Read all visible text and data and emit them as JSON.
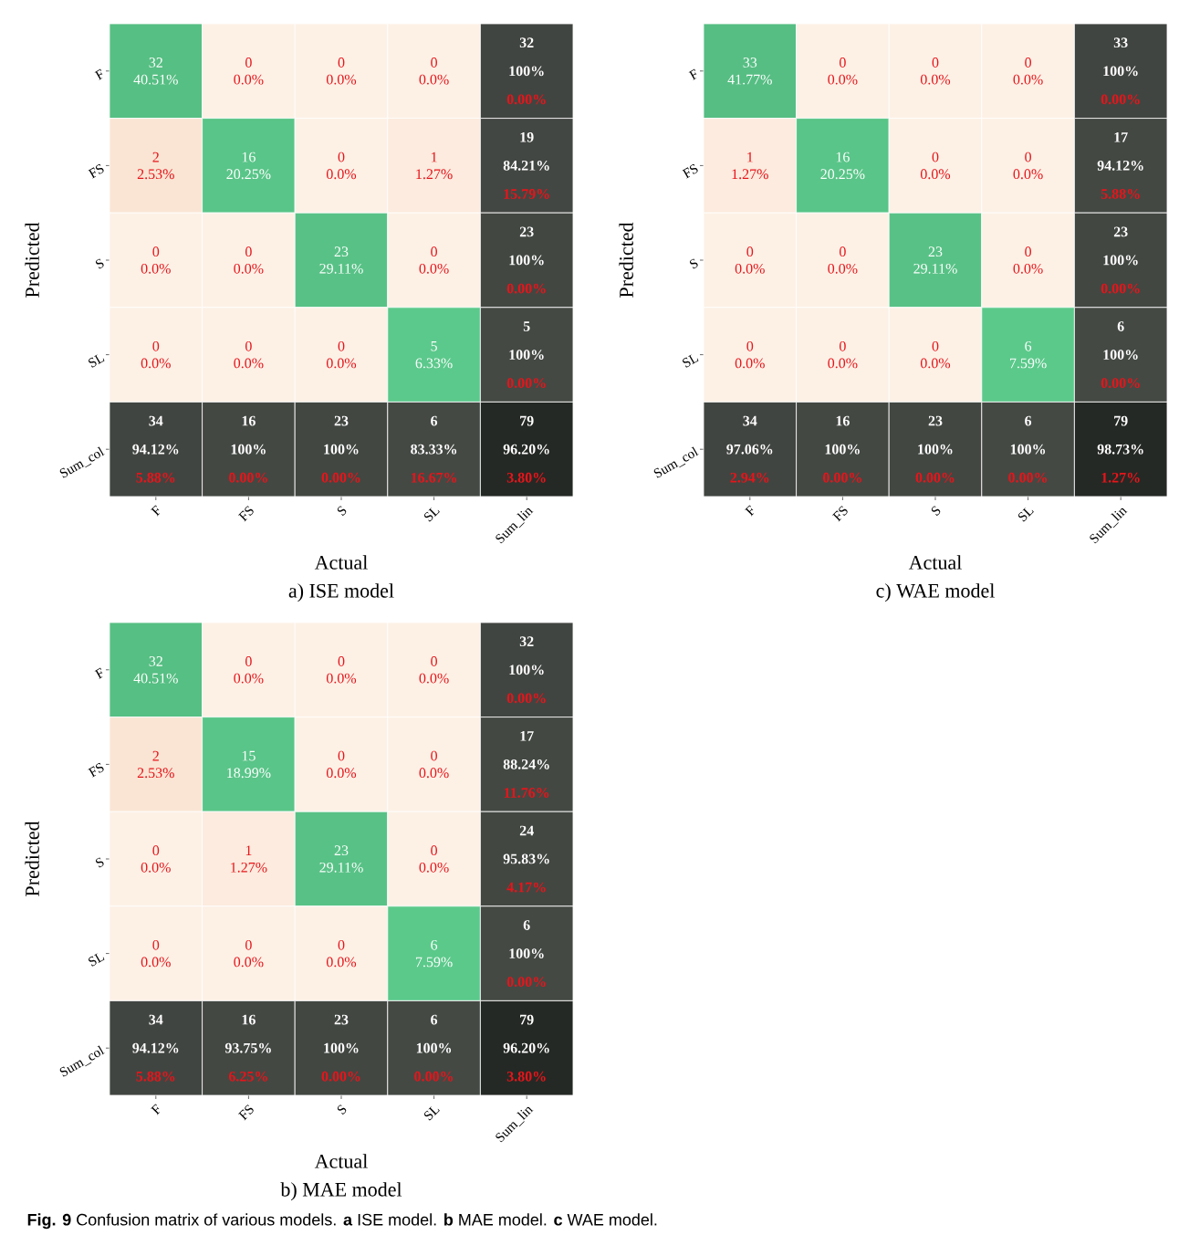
{
  "chart_data": [
    {
      "type": "heatmap",
      "title": "a) ISE model",
      "xlabel": "Actual",
      "ylabel": "Predicted",
      "categories": [
        "F",
        "FS",
        "S",
        "SL",
        "Sum_lin"
      ],
      "y_categories": [
        "F",
        "FS",
        "S",
        "SL",
        "Sum_col"
      ],
      "cells": [
        [
          32,
          0,
          0,
          0,
          32
        ],
        [
          2,
          16,
          0,
          1,
          19
        ],
        [
          0,
          0,
          23,
          0,
          23
        ],
        [
          0,
          0,
          0,
          5,
          5
        ],
        [
          34,
          16,
          23,
          6,
          79
        ]
      ],
      "cell_labels": [
        [
          "32",
          "0",
          "0",
          "0",
          "32"
        ],
        [
          "2",
          "16",
          "0",
          "1",
          "19"
        ],
        [
          "0",
          "0",
          "23",
          "0",
          "23"
        ],
        [
          "0",
          "0",
          "0",
          "5",
          "5"
        ],
        [
          "34",
          "16",
          "23",
          "6",
          "79"
        ]
      ],
      "colors": [
        [
          "#5ccb8c",
          "#fdf1e6",
          "#fdf1e6",
          "#fdf1e6",
          "#454a45"
        ],
        [
          "#fbe6d5",
          "#5ccb8c",
          "#fdf1e6",
          "#fcebde",
          "#454a45"
        ],
        [
          "#fdf1e6",
          "#fdf1e6",
          "#5ccb8c",
          "#fdf1e6",
          "#454a45"
        ],
        [
          "#fdf1e6",
          "#fdf1e6",
          "#fdf1e6",
          "#5ccb8c",
          "#454a45"
        ],
        [
          "#454a45",
          "#454a45",
          "#454a45",
          "#454a45",
          "#2b302b"
        ]
      ],
      "annotations": [
        "40.51%",
        "0.0%",
        "0.0%",
        "0.0%",
        "100%",
        "0.00%",
        "2.53%",
        "20.25%",
        "0.0%",
        "1.27%",
        "84.21%",
        "15.79%",
        "0.0%",
        "0.0%",
        "29.11%",
        "0.0%",
        "100%",
        "0.00%",
        "0.0%",
        "0.0%",
        "0.0%",
        "6.33%",
        "100%",
        "0.00%",
        "94.12%",
        "5.88%",
        "100%",
        "0.00%",
        "100%",
        "0.00%",
        "83.33%",
        "16.67%",
        "96.20%",
        "3.80%"
      ]
    },
    {
      "type": "heatmap",
      "title": "c) WAE model",
      "xlabel": "Actual",
      "ylabel": "Predicted",
      "categories": [
        "F",
        "FS",
        "S",
        "SL",
        "Sum_lin"
      ],
      "y_categories": [
        "F",
        "FS",
        "S",
        "SL",
        "Sum_col"
      ],
      "cells": [
        [
          33,
          0,
          0,
          0,
          33
        ],
        [
          1,
          16,
          0,
          0,
          17
        ],
        [
          0,
          0,
          23,
          0,
          23
        ],
        [
          0,
          0,
          0,
          6,
          6
        ],
        [
          34,
          16,
          23,
          6,
          79
        ]
      ],
      "cell_labels": [
        [
          "33",
          "0",
          "0",
          "0",
          "33"
        ],
        [
          "1",
          "16",
          "0",
          "0",
          "17"
        ],
        [
          "0",
          "0",
          "23",
          "0",
          "23"
        ],
        [
          "0",
          "0",
          "0",
          "6",
          "6"
        ],
        [
          "34",
          "16",
          "23",
          "6",
          "79"
        ]
      ],
      "colors": [
        [
          "#5ccb8c",
          "#fdf1e6",
          "#fdf1e6",
          "#fdf1e6",
          "#454a45"
        ],
        [
          "#fcebde",
          "#5ccb8c",
          "#fdf1e6",
          "#fdf1e6",
          "#454a45"
        ],
        [
          "#fdf1e6",
          "#fdf1e6",
          "#5ccb8c",
          "#fdf1e6",
          "#454a45"
        ],
        [
          "#fdf1e6",
          "#fdf1e6",
          "#fdf1e6",
          "#5ccb8c",
          "#454a45"
        ],
        [
          "#454a45",
          "#454a45",
          "#454a45",
          "#454a45",
          "#2b302b"
        ]
      ],
      "annotations": [
        "41.77%",
        "0.0%",
        "0.0%",
        "0.0%",
        "100%",
        "0.00%",
        "1.27%",
        "20.25%",
        "0.0%",
        "0.0%",
        "94.12%",
        "5.88%",
        "0.0%",
        "0.0%",
        "29.11%",
        "0.0%",
        "100%",
        "0.00%",
        "0.0%",
        "0.0%",
        "0.0%",
        "7.59%",
        "100%",
        "0.00%",
        "97.06%",
        "2.94%",
        "100%",
        "0.00%",
        "100%",
        "0.00%",
        "100%",
        "0.00%",
        "98.73%",
        "1.27%"
      ]
    },
    {
      "type": "heatmap",
      "title": "b) MAE model",
      "xlabel": "Actual",
      "ylabel": "Predicted",
      "categories": [
        "F",
        "FS",
        "S",
        "SL",
        "Sum_lin"
      ],
      "y_categories": [
        "F",
        "FS",
        "S",
        "SL",
        "Sum_col"
      ],
      "cells": [
        [
          32,
          0,
          0,
          0,
          32
        ],
        [
          2,
          15,
          0,
          0,
          17
        ],
        [
          0,
          1,
          23,
          0,
          24
        ],
        [
          0,
          0,
          0,
          6,
          6
        ],
        [
          34,
          16,
          23,
          6,
          79
        ]
      ],
      "cell_labels": [
        [
          "32",
          "0",
          "0",
          "0",
          "32"
        ],
        [
          "2",
          "15",
          "0",
          "0",
          "17"
        ],
        [
          "0",
          "1",
          "23",
          "0",
          "24"
        ],
        [
          "0",
          "0",
          "0",
          "6",
          "6"
        ],
        [
          "34",
          "16",
          "23",
          "6",
          "79"
        ]
      ],
      "colors": [
        [
          "#5ccb8c",
          "#fdf1e6",
          "#fdf1e6",
          "#fdf1e6",
          "#454a45"
        ],
        [
          "#fbe6d5",
          "#5ccb8c",
          "#fdf1e6",
          "#fdf1e6",
          "#454a45"
        ],
        [
          "#fdf1e6",
          "#fcebde",
          "#5ccb8c",
          "#fdf1e6",
          "#454a45"
        ],
        [
          "#fdf1e6",
          "#fdf1e6",
          "#fdf1e6",
          "#5ccb8c",
          "#454a45"
        ],
        [
          "#454a45",
          "#454a45",
          "#454a45",
          "#454a45",
          "#2b302b"
        ]
      ],
      "annotations": [
        "40.51%",
        "0.0%",
        "0.0%",
        "0.0%",
        "100%",
        "0.00%",
        "2.53%",
        "18.99%",
        "0.0%",
        "0.0%",
        "88.24%",
        "11.76%",
        "0.0%",
        "1.27%",
        "29.11%",
        "0.0%",
        "95.83%",
        "4.17%",
        "0.0%",
        "0.0%",
        "0.0%",
        "7.59%",
        "100%",
        "0.00%",
        "94.12%",
        "5.88%",
        "93.75%",
        "6.25%",
        "100%",
        "0.00%",
        "100%",
        "0.00%",
        "96.20%",
        "3.80%",
        "**Fig. 9** Confusion matrix of various models. **a** ISE model. **b** MAE model. **c** WAE model."
      ]
    }
  ]
}
